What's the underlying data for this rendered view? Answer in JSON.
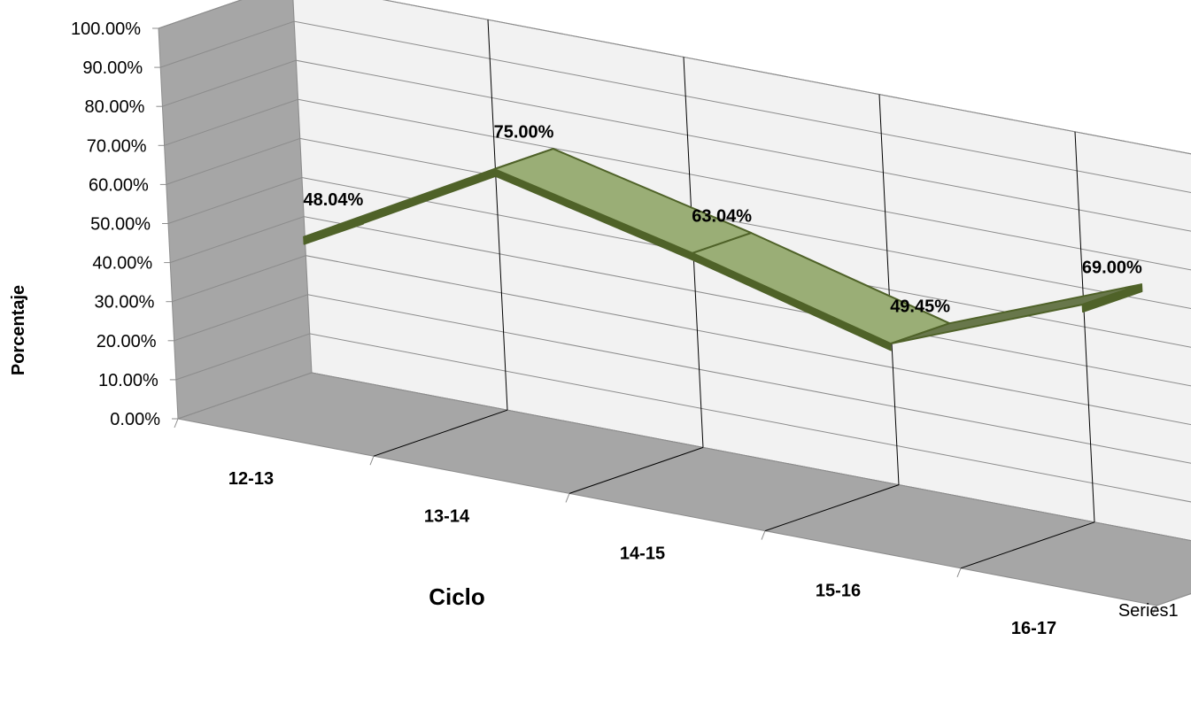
{
  "chart_data": {
    "type": "line",
    "style": "3d-ribbon",
    "categories": [
      "12-13",
      "13-14",
      "14-15",
      "15-16",
      "16-17"
    ],
    "series": [
      {
        "name": "Series1",
        "values": [
          48.04,
          75.0,
          63.04,
          49.45,
          69.0
        ]
      }
    ],
    "data_labels": [
      "48.04%",
      "75.00%",
      "63.04%",
      "49.45%",
      "69.00%"
    ],
    "ylim": [
      0,
      100
    ],
    "y_ticks": [
      "0.00%",
      "10.00%",
      "20.00%",
      "30.00%",
      "40.00%",
      "50.00%",
      "60.00%",
      "70.00%",
      "80.00%",
      "90.00%",
      "100.00%"
    ],
    "xlabel": "Ciclo",
    "ylabel": "Porcentaje",
    "depth_axis_label": "Series1",
    "grid": true,
    "colors": {
      "ribbon_top": "#9aae76",
      "ribbon_side": "#68774b",
      "ribbon_edge": "#4f6228",
      "back_wall": "#f2f2f2",
      "side_wall": "#a6a6a6",
      "floor": "#a6a6a6",
      "gridline": "#8c8c8c"
    }
  }
}
